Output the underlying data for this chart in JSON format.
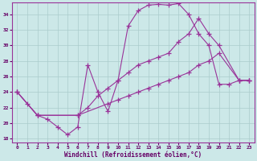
{
  "xlabel": "Windchill (Refroidissement éolien,°C)",
  "bg_color": "#cce8e8",
  "grid_color": "#aacccc",
  "line_color": "#993399",
  "xlim": [
    -0.5,
    23.5
  ],
  "ylim": [
    17.5,
    35.5
  ],
  "yticks": [
    18,
    20,
    22,
    24,
    26,
    28,
    30,
    32,
    34
  ],
  "xticks": [
    0,
    1,
    2,
    3,
    4,
    5,
    6,
    7,
    8,
    9,
    10,
    11,
    12,
    13,
    14,
    15,
    16,
    17,
    18,
    19,
    20,
    21,
    22,
    23
  ],
  "line1_x": [
    0,
    1,
    2,
    3,
    4,
    5,
    6,
    7,
    8,
    9,
    10,
    11,
    12,
    13,
    14,
    15,
    16,
    17,
    18,
    19,
    20,
    21,
    22,
    23
  ],
  "line1_y": [
    24.0,
    22.5,
    21.0,
    20.5,
    19.5,
    18.5,
    19.5,
    27.5,
    24.0,
    21.5,
    25.5,
    32.5,
    34.5,
    35.2,
    35.3,
    35.2,
    35.4,
    34.0,
    31.5,
    30.0,
    25.0,
    25.0,
    25.5,
    25.5
  ],
  "line2_x": [
    0,
    2,
    6,
    7,
    8,
    9,
    10,
    11,
    12,
    13,
    14,
    15,
    16,
    17,
    18,
    19,
    20,
    22,
    23
  ],
  "line2_y": [
    24.0,
    21.0,
    21.0,
    22.0,
    23.5,
    24.5,
    25.5,
    26.5,
    27.5,
    28.0,
    28.5,
    29.0,
    30.5,
    31.5,
    33.5,
    31.5,
    30.0,
    25.5,
    25.5
  ],
  "line3_x": [
    0,
    2,
    6,
    9,
    10,
    11,
    12,
    13,
    14,
    15,
    16,
    17,
    18,
    19,
    20,
    22,
    23
  ],
  "line3_y": [
    24.0,
    21.0,
    21.0,
    22.5,
    23.0,
    23.5,
    24.0,
    24.5,
    25.0,
    25.5,
    26.0,
    26.5,
    27.5,
    28.0,
    29.0,
    25.5,
    25.5
  ]
}
